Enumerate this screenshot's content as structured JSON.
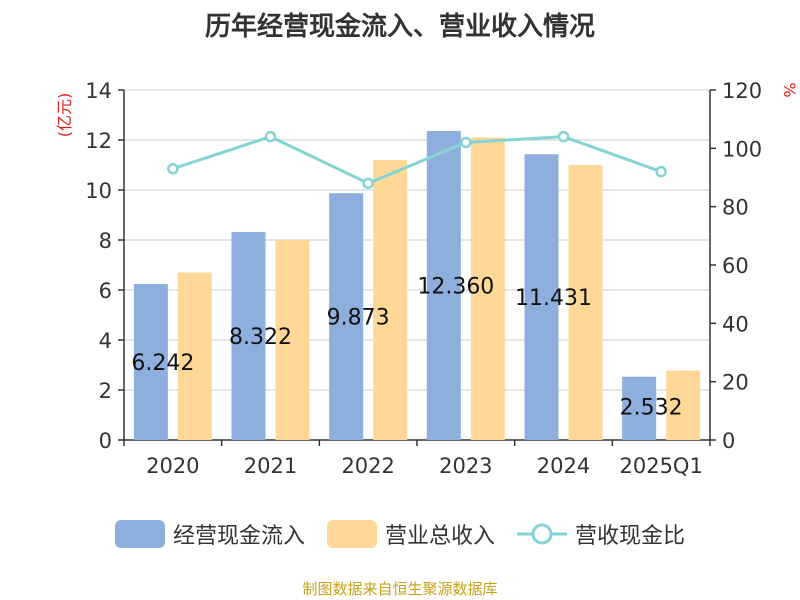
{
  "title": "历年经营现金流入、营业收入情况",
  "source_note": "制图数据来自恒生聚源数据库",
  "colors": {
    "cash_inflow": "#8eaedd",
    "revenue": "#ffd897",
    "ratio": "#84d3d5",
    "axis_label": "#e02020",
    "grid": "#cccccc",
    "text": "#333333"
  },
  "chart_data": {
    "type": "bar",
    "title": "历年经营现金流入、营业收入情况",
    "categories": [
      "2020",
      "2021",
      "2022",
      "2023",
      "2024",
      "2025Q1"
    ],
    "ylabel_left": "(亿元)",
    "ylabel_right": "%",
    "ylim_left": [
      0,
      14
    ],
    "yticks_left": [
      0,
      2,
      4,
      6,
      8,
      10,
      12,
      14
    ],
    "ylim_right": [
      0,
      120
    ],
    "yticks_right": [
      0,
      20,
      40,
      60,
      80,
      100,
      120
    ],
    "grid": true,
    "legend_position": "bottom",
    "series": [
      {
        "name": "经营现金流入",
        "kind": "bar",
        "axis": "left",
        "values": [
          6.242,
          8.322,
          9.873,
          12.36,
          11.431,
          2.532
        ],
        "labels": [
          "6.242",
          "8.322",
          "9.873",
          "12.360",
          "11.431",
          "2.532"
        ]
      },
      {
        "name": "营业总收入",
        "kind": "bar",
        "axis": "left",
        "values": [
          6.7,
          8.0,
          11.2,
          12.1,
          11.0,
          2.78
        ]
      },
      {
        "name": "营收现金比",
        "kind": "line",
        "axis": "right",
        "values": [
          93,
          104,
          88,
          102,
          104,
          92
        ]
      }
    ]
  }
}
